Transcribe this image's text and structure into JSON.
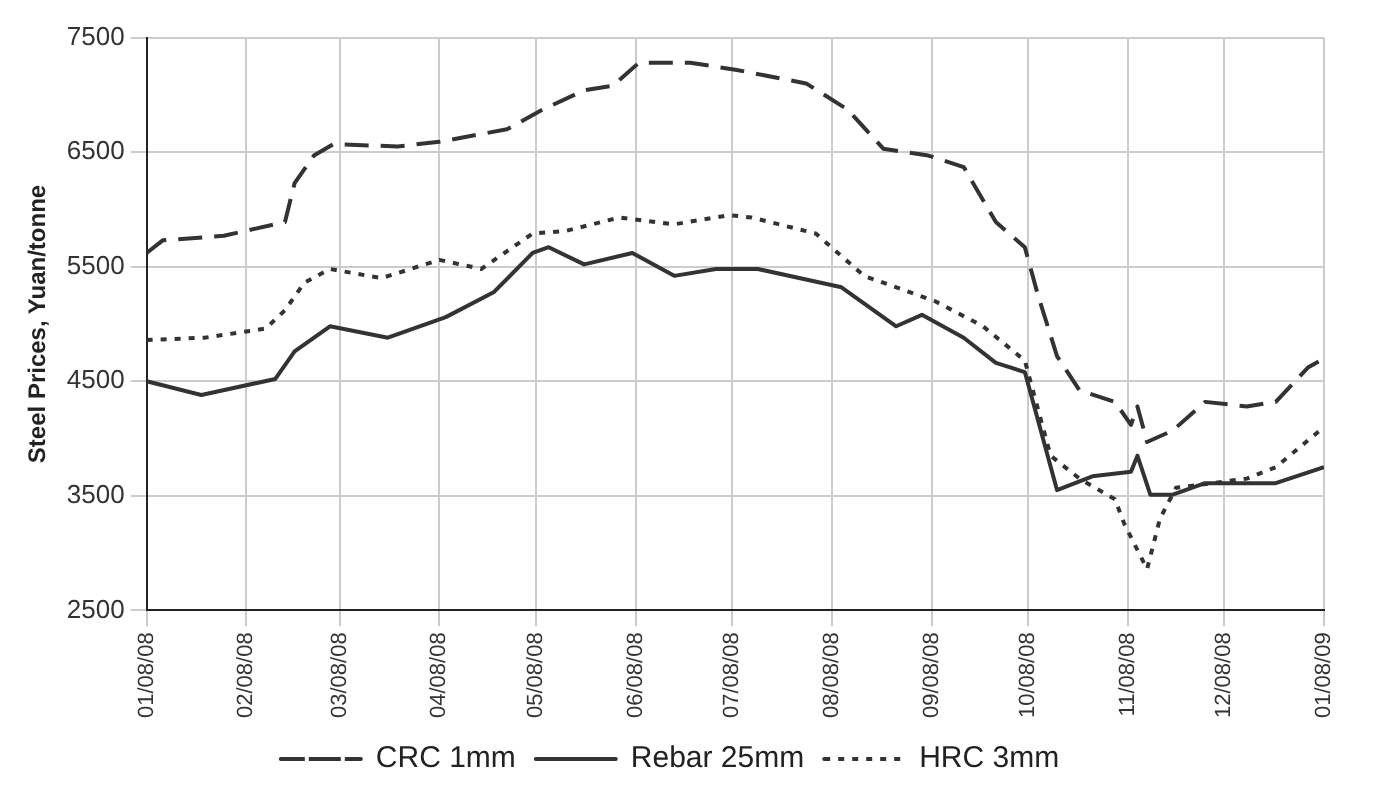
{
  "chart_data": {
    "type": "line",
    "ylabel": "Steel Prices, Yuan/tonne",
    "xlim": [
      "2008-01-08",
      "2009-01-08"
    ],
    "ylim": [
      2500,
      7500
    ],
    "yticks": [
      2500,
      3500,
      4500,
      5500,
      6500,
      7500
    ],
    "xticks": [
      {
        "value": "2008-01-08",
        "label": "01/08/08"
      },
      {
        "value": "2008-02-08",
        "label": "02/08/08"
      },
      {
        "value": "2008-03-08",
        "label": "03/08/08"
      },
      {
        "value": "2008-04-08",
        "label": "04/08/08"
      },
      {
        "value": "2008-05-08",
        "label": "05/08/08"
      },
      {
        "value": "2008-06-08",
        "label": "06/08/08"
      },
      {
        "value": "2008-07-08",
        "label": "07/08/08"
      },
      {
        "value": "2008-08-08",
        "label": "08/08/08"
      },
      {
        "value": "2008-09-08",
        "label": "09/08/08"
      },
      {
        "value": "2008-10-08",
        "label": "10/08/08"
      },
      {
        "value": "2008-11-08",
        "label": "11/08/08"
      },
      {
        "value": "2008-12-08",
        "label": "12/08/08"
      },
      {
        "value": "2009-01-08",
        "label": "01/08/09"
      }
    ],
    "grid": true,
    "legend": "bottom",
    "marker": "none",
    "series": [
      {
        "name": "CRC 1mm",
        "color": "#333333",
        "line_style": "dashed",
        "x": [
          "2008-01-08",
          "2008-01-13",
          "2008-02-01",
          "2008-02-20",
          "2008-02-23",
          "2008-02-29",
          "2008-03-06",
          "2008-03-26",
          "2008-04-08",
          "2008-04-29",
          "2008-05-10",
          "2008-05-23",
          "2008-06-01",
          "2008-06-09",
          "2008-06-25",
          "2008-07-09",
          "2008-07-31",
          "2008-08-13",
          "2008-08-24",
          "2008-09-07",
          "2008-09-18",
          "2008-09-28",
          "2008-10-07",
          "2008-10-11",
          "2008-10-17",
          "2008-10-24",
          "2008-11-04",
          "2008-11-09",
          "2008-11-11",
          "2008-11-14",
          "2008-11-22",
          "2008-12-02",
          "2008-12-15",
          "2008-12-24",
          "2009-01-03",
          "2009-01-08"
        ],
        "values": [
          5620,
          5730,
          5770,
          5890,
          6230,
          6470,
          6570,
          6550,
          6590,
          6700,
          6870,
          7040,
          7080,
          7280,
          7280,
          7220,
          7100,
          6870,
          6530,
          6470,
          6370,
          5890,
          5670,
          5260,
          4720,
          4420,
          4320,
          4120,
          4280,
          3970,
          4070,
          4320,
          4280,
          4320,
          4620,
          4700
        ]
      },
      {
        "name": "Rebar 25mm",
        "color": "#333333",
        "line_style": "solid",
        "x": [
          "2008-01-08",
          "2008-01-25",
          "2008-02-17",
          "2008-02-23",
          "2008-03-05",
          "2008-03-23",
          "2008-04-10",
          "2008-04-25",
          "2008-05-07",
          "2008-05-12",
          "2008-05-23",
          "2008-06-07",
          "2008-06-20",
          "2008-07-03",
          "2008-07-16",
          "2008-08-11",
          "2008-08-28",
          "2008-09-05",
          "2008-09-18",
          "2008-09-28",
          "2008-10-07",
          "2008-10-17",
          "2008-10-28",
          "2008-11-09",
          "2008-11-11",
          "2008-11-15",
          "2008-11-22",
          "2008-12-02",
          "2008-12-24",
          "2009-01-08"
        ],
        "values": [
          4500,
          4380,
          4520,
          4760,
          4980,
          4880,
          5060,
          5280,
          5620,
          5670,
          5520,
          5620,
          5420,
          5480,
          5480,
          5320,
          4980,
          5080,
          4880,
          4660,
          4580,
          3550,
          3670,
          3710,
          3850,
          3510,
          3510,
          3610,
          3610,
          3750
        ]
      },
      {
        "name": "HRC 3mm",
        "color": "#333333",
        "line_style": "dotted",
        "x": [
          "2008-01-08",
          "2008-01-26",
          "2008-02-14",
          "2008-02-20",
          "2008-02-26",
          "2008-03-05",
          "2008-03-21",
          "2008-04-08",
          "2008-04-21",
          "2008-05-07",
          "2008-05-17",
          "2008-06-03",
          "2008-06-20",
          "2008-07-07",
          "2008-07-14",
          "2008-08-03",
          "2008-08-18",
          "2008-09-09",
          "2008-09-24",
          "2008-10-07",
          "2008-10-15",
          "2008-10-24",
          "2008-11-04",
          "2008-11-07",
          "2008-11-14",
          "2008-11-18",
          "2008-11-23",
          "2008-12-15",
          "2008-12-24",
          "2009-01-08"
        ],
        "values": [
          4860,
          4880,
          4960,
          5120,
          5360,
          5480,
          5400,
          5560,
          5480,
          5790,
          5810,
          5930,
          5870,
          5950,
          5930,
          5790,
          5420,
          5200,
          4980,
          4680,
          3850,
          3650,
          3470,
          3250,
          2860,
          3300,
          3570,
          3650,
          3750,
          4100
        ]
      }
    ]
  }
}
